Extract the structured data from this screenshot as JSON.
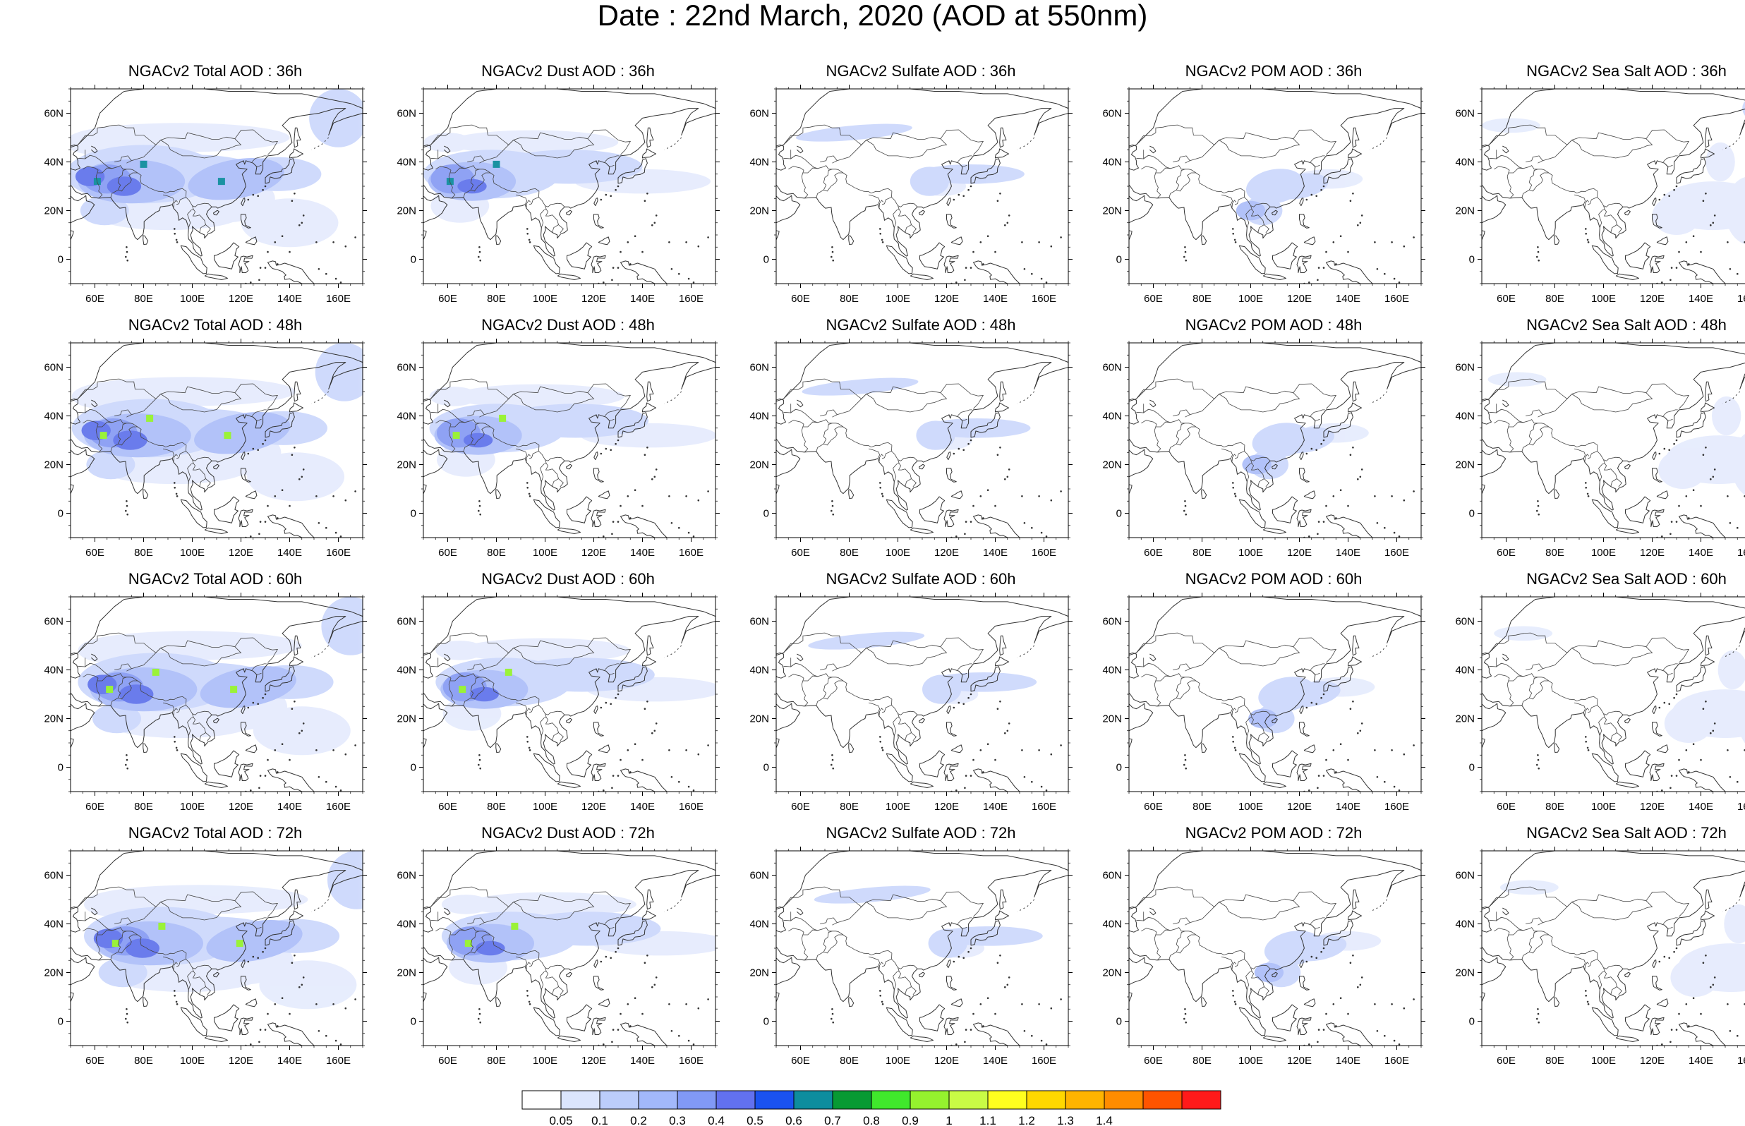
{
  "title": "Date : 22nd March, 2020 (AOD at 550nm)",
  "rows": [
    "36h",
    "48h",
    "60h",
    "72h"
  ],
  "panels": [
    [
      "NGACv2 Total AOD : 36h",
      "NGACv2 Dust AOD : 36h",
      "NGACv2 Sulfate AOD : 36h",
      "NGACv2 POM AOD : 36h",
      "NGACv2 Sea Salt AOD : 36h"
    ],
    [
      "NGACv2 Total AOD : 48h",
      "NGACv2 Dust AOD : 48h",
      "NGACv2 Sulfate AOD : 48h",
      "NGACv2 POM AOD : 48h",
      "NGACv2 Sea Salt AOD : 48h"
    ],
    [
      "NGACv2 Total AOD : 60h",
      "NGACv2 Dust AOD : 60h",
      "NGACv2 Sulfate AOD : 60h",
      "NGACv2 POM AOD : 60h",
      "NGACv2 Sea Salt AOD : 60h"
    ],
    [
      "NGACv2 Total AOD : 72h",
      "NGACv2 Dust AOD : 72h",
      "NGACv2 Sulfate AOD : 72h",
      "NGACv2 POM AOD : 72h",
      "NGACv2 Sea Salt  AOD : 72h"
    ]
  ],
  "map_extent": {
    "lon": [
      50,
      170
    ],
    "lat": [
      -10,
      70
    ]
  },
  "lon_ticks": [
    "60E",
    "80E",
    "100E",
    "120E",
    "140E",
    "160E"
  ],
  "lon_tick_values": [
    60,
    80,
    100,
    120,
    140,
    160
  ],
  "lat_ticks": [
    "60N",
    "40N",
    "20N",
    "0"
  ],
  "lat_tick_values": [
    60,
    40,
    20,
    0
  ],
  "colorbar": {
    "labels": [
      "0.05",
      "0.1",
      "0.2",
      "0.3",
      "0.4",
      "0.5",
      "0.6",
      "0.7",
      "0.8",
      "0.9",
      "1",
      "1.1",
      "1.2",
      "1.3",
      "1.4"
    ],
    "colors": [
      "#ffffff",
      "#dbe5fd",
      "#bccdfb",
      "#a2b8fb",
      "#8199f6",
      "#6271ef",
      "#1a52f0",
      "#0e8d9e",
      "#079a33",
      "#40e82c",
      "#95f22e",
      "#c9fb45",
      "#ffff1f",
      "#ffd800",
      "#ffb400",
      "#ff8c00",
      "#ff5400",
      "#ff1a1a"
    ]
  }
}
